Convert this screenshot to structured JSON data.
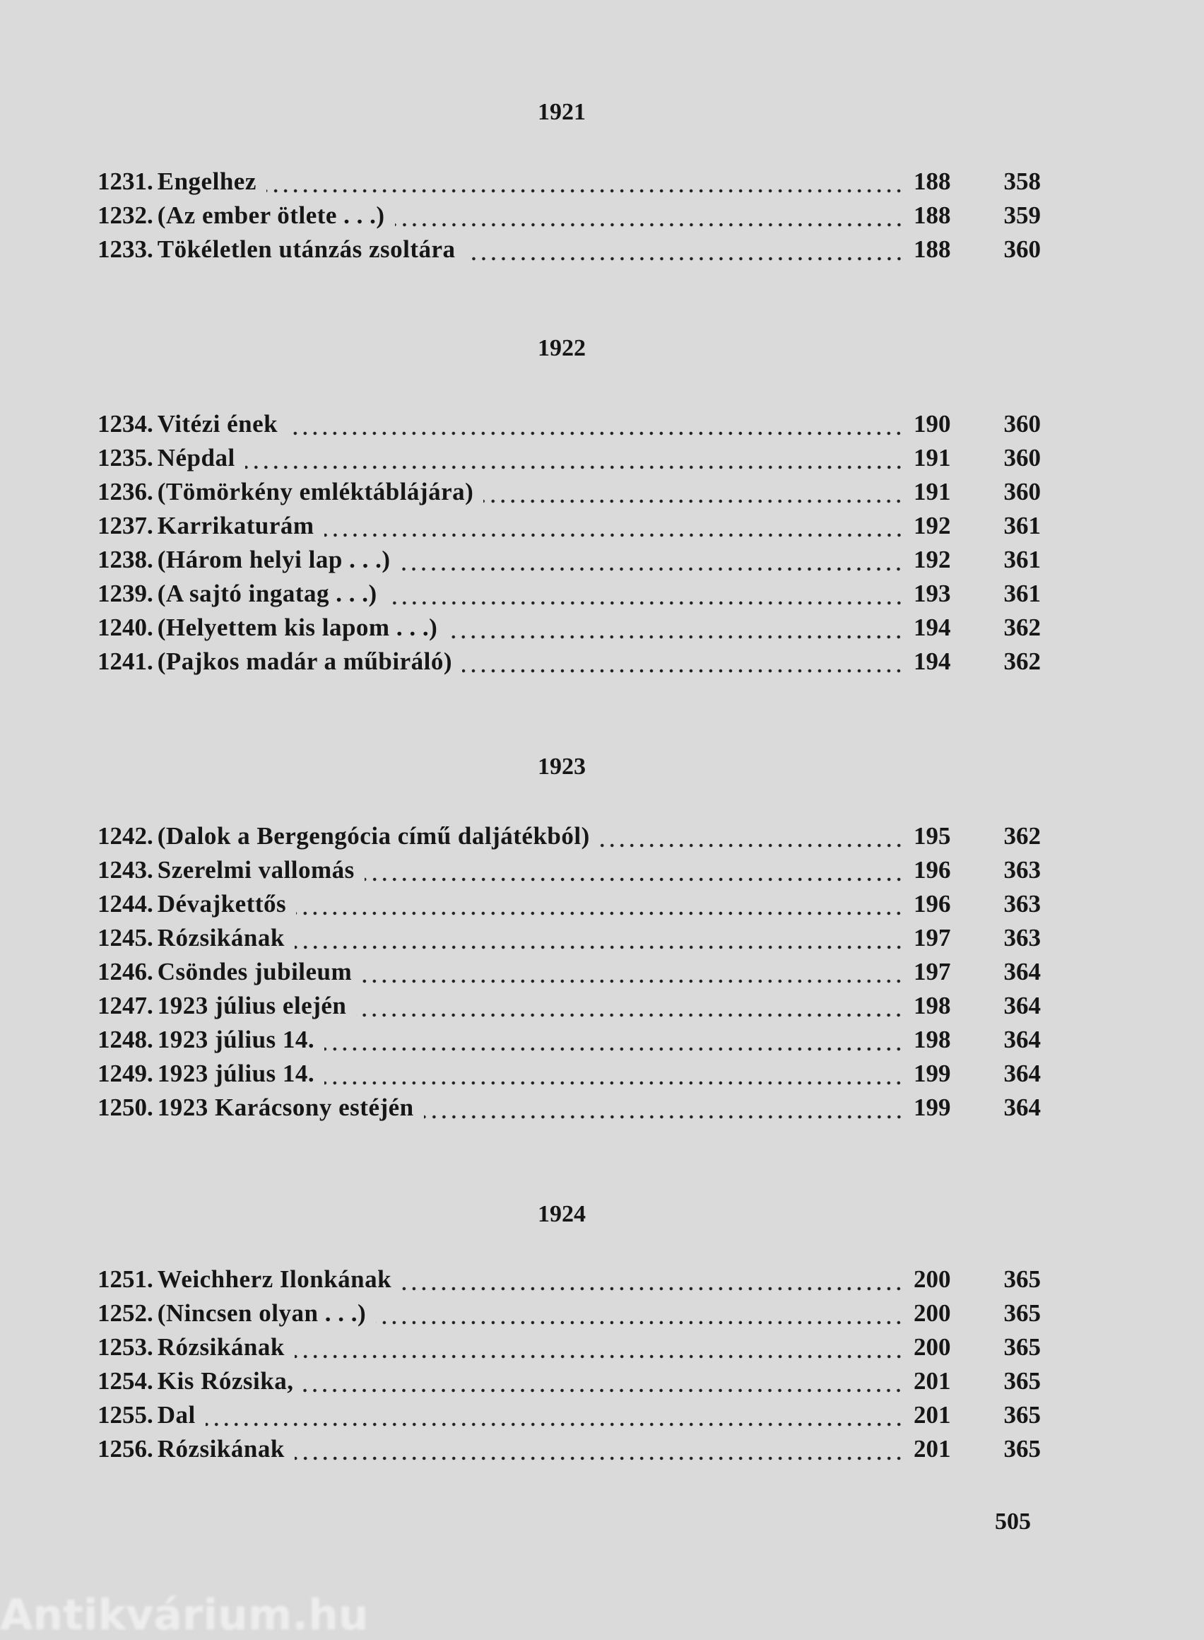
{
  "sections": [
    {
      "year": "1921",
      "entries": [
        {
          "num": "1231.",
          "title": "Engelhez",
          "page": "188",
          "vol": "358"
        },
        {
          "num": "1232.",
          "title": "(Az ember ötlete . . .)",
          "page": "188",
          "vol": "359"
        },
        {
          "num": "1233.",
          "title": "Tökéletlen utánzás zsoltára",
          "page": "188",
          "vol": "360"
        }
      ]
    },
    {
      "year": "1922",
      "entries": [
        {
          "num": "1234.",
          "title": "Vitézi ének",
          "page": "190",
          "vol": "360"
        },
        {
          "num": "1235.",
          "title": "Népdal",
          "page": "191",
          "vol": "360"
        },
        {
          "num": "1236.",
          "title": "(Tömörkény emléktáblájára)",
          "page": "191",
          "vol": "360"
        },
        {
          "num": "1237.",
          "title": "Karrikaturám",
          "page": "192",
          "vol": "361"
        },
        {
          "num": "1238.",
          "title": "(Három helyi lap . . .)",
          "page": "192",
          "vol": "361"
        },
        {
          "num": "1239.",
          "title": "(A sajtó ingatag . . .)",
          "page": "193",
          "vol": "361"
        },
        {
          "num": "1240.",
          "title": "(Helyettem kis lapom . . .)",
          "page": "194",
          "vol": "362"
        },
        {
          "num": "1241.",
          "title": "(Pajkos madár a műbiráló)",
          "page": "194",
          "vol": "362"
        }
      ]
    },
    {
      "year": "1923",
      "entries": [
        {
          "num": "1242.",
          "title": "(Dalok a Bergengócia című daljátékból)",
          "page": "195",
          "vol": "362"
        },
        {
          "num": "1243.",
          "title": "Szerelmi vallomás",
          "page": "196",
          "vol": "363"
        },
        {
          "num": "1244.",
          "title": "Dévajkettős",
          "page": "196",
          "vol": "363"
        },
        {
          "num": "1245.",
          "title": "Rózsikának",
          "page": "197",
          "vol": "363"
        },
        {
          "num": "1246.",
          "title": "Csöndes jubileum",
          "page": "197",
          "vol": "364"
        },
        {
          "num": "1247.",
          "title": "1923 július elején",
          "page": "198",
          "vol": "364"
        },
        {
          "num": "1248.",
          "title": "1923 július 14.",
          "page": "198",
          "vol": "364"
        },
        {
          "num": "1249.",
          "title": "1923 július 14.",
          "page": "199",
          "vol": "364"
        },
        {
          "num": "1250.",
          "title": "1923 Karácsony estéjén",
          "page": "199",
          "vol": "364"
        }
      ]
    },
    {
      "year": "1924",
      "entries": [
        {
          "num": "1251.",
          "title": "Weichherz Ilonkának",
          "page": "200",
          "vol": "365"
        },
        {
          "num": "1252.",
          "title": "(Nincsen olyan . . .)",
          "page": "200",
          "vol": "365"
        },
        {
          "num": "1253.",
          "title": "Rózsikának",
          "page": "200",
          "vol": "365"
        },
        {
          "num": "1254.",
          "title": "Kis Rózsika,",
          "page": "201",
          "vol": "365"
        },
        {
          "num": "1255.",
          "title": "Dal",
          "page": "201",
          "vol": "365"
        },
        {
          "num": "1256.",
          "title": "Rózsikának",
          "page": "201",
          "vol": "365"
        }
      ]
    }
  ],
  "page_number": "505",
  "watermark": "Antikvárium.hu"
}
